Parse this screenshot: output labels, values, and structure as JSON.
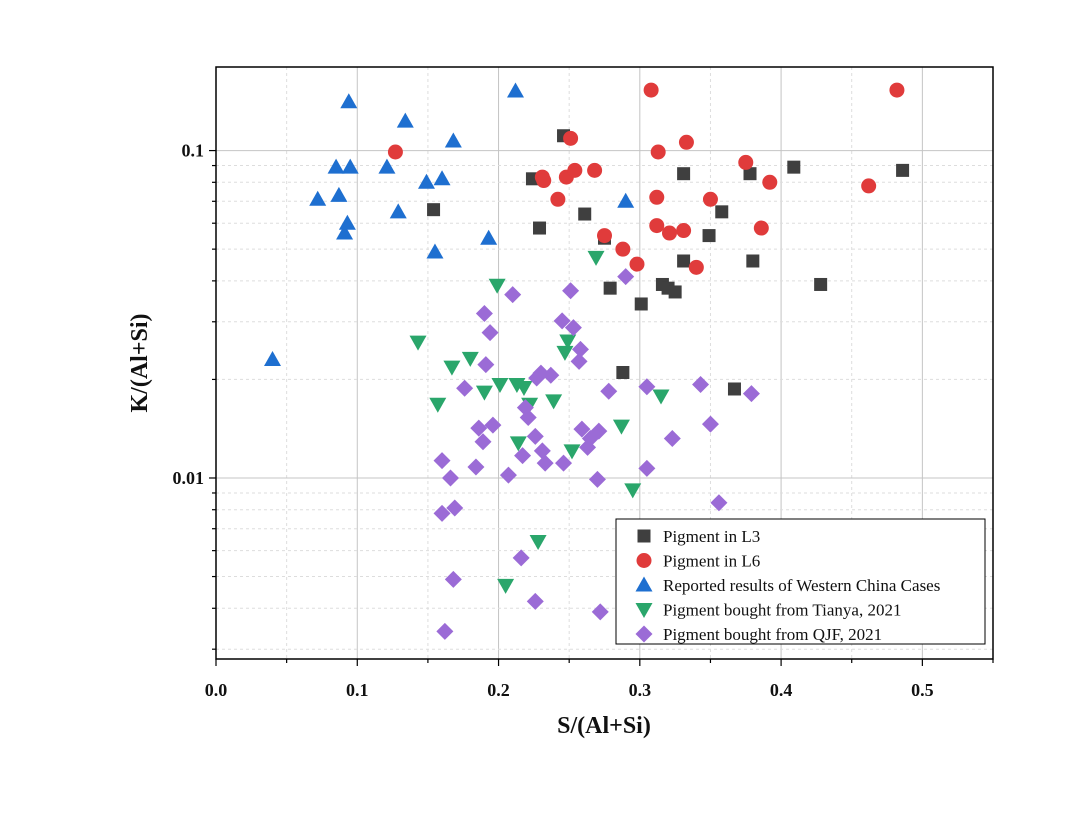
{
  "chart_data": {
    "type": "scatter",
    "title": "",
    "xlabel": "S/(Al+Si)",
    "ylabel": "K/(Al+Si)",
    "xlim": [
      0.0,
      0.55
    ],
    "ylim": [
      0.0028,
      0.18
    ],
    "yscale": "log",
    "x_ticks": [
      0.0,
      0.1,
      0.2,
      0.3,
      0.4,
      0.5
    ],
    "x_tick_labels": [
      "0.0",
      "0.1",
      "0.2",
      "0.3",
      "0.4",
      "0.5"
    ],
    "y_ticks": [
      0.01,
      0.1
    ],
    "y_tick_labels": [
      "0.01",
      "0.1"
    ],
    "grid": true,
    "legend_position": "bottom-right",
    "series": [
      {
        "name": "Pigment in L3",
        "marker": "square",
        "color": "#3f3f3f",
        "points": [
          [
            0.246,
            0.111
          ],
          [
            0.224,
            0.082
          ],
          [
            0.229,
            0.058
          ],
          [
            0.154,
            0.066
          ],
          [
            0.261,
            0.064
          ],
          [
            0.275,
            0.054
          ],
          [
            0.279,
            0.038
          ],
          [
            0.301,
            0.034
          ],
          [
            0.316,
            0.039
          ],
          [
            0.32,
            0.038
          ],
          [
            0.325,
            0.037
          ],
          [
            0.331,
            0.046
          ],
          [
            0.331,
            0.085
          ],
          [
            0.349,
            0.055
          ],
          [
            0.358,
            0.065
          ],
          [
            0.378,
            0.085
          ],
          [
            0.38,
            0.046
          ],
          [
            0.409,
            0.089
          ],
          [
            0.428,
            0.039
          ],
          [
            0.486,
            0.087
          ],
          [
            0.288,
            0.021
          ],
          [
            0.367,
            0.0187
          ]
        ]
      },
      {
        "name": "Pigment in L6",
        "marker": "circle",
        "color": "#e03b3b",
        "points": [
          [
            0.127,
            0.099
          ],
          [
            0.231,
            0.083
          ],
          [
            0.232,
            0.081
          ],
          [
            0.242,
            0.071
          ],
          [
            0.248,
            0.083
          ],
          [
            0.251,
            0.109
          ],
          [
            0.254,
            0.087
          ],
          [
            0.268,
            0.087
          ],
          [
            0.275,
            0.055
          ],
          [
            0.288,
            0.05
          ],
          [
            0.298,
            0.045
          ],
          [
            0.308,
            0.153
          ],
          [
            0.312,
            0.072
          ],
          [
            0.312,
            0.059
          ],
          [
            0.313,
            0.099
          ],
          [
            0.321,
            0.056
          ],
          [
            0.331,
            0.057
          ],
          [
            0.333,
            0.106
          ],
          [
            0.34,
            0.044
          ],
          [
            0.35,
            0.071
          ],
          [
            0.375,
            0.092
          ],
          [
            0.386,
            0.058
          ],
          [
            0.392,
            0.08
          ],
          [
            0.462,
            0.078
          ],
          [
            0.482,
            0.153
          ]
        ]
      },
      {
        "name": "Reported results of Western China Cases",
        "marker": "triangle-up",
        "color": "#1e6fd0",
        "points": [
          [
            0.04,
            0.023
          ],
          [
            0.072,
            0.071
          ],
          [
            0.085,
            0.089
          ],
          [
            0.087,
            0.073
          ],
          [
            0.091,
            0.056
          ],
          [
            0.093,
            0.06
          ],
          [
            0.094,
            0.141
          ],
          [
            0.095,
            0.089
          ],
          [
            0.121,
            0.089
          ],
          [
            0.129,
            0.065
          ],
          [
            0.134,
            0.123
          ],
          [
            0.149,
            0.08
          ],
          [
            0.155,
            0.049
          ],
          [
            0.16,
            0.082
          ],
          [
            0.168,
            0.107
          ],
          [
            0.193,
            0.054
          ],
          [
            0.212,
            0.152
          ],
          [
            0.29,
            0.07
          ]
        ]
      },
      {
        "name": "Pigment bought from Tianya, 2021",
        "marker": "triangle-down",
        "color": "#2aa66b",
        "points": [
          [
            0.143,
            0.026
          ],
          [
            0.157,
            0.0168
          ],
          [
            0.167,
            0.0218
          ],
          [
            0.18,
            0.0232
          ],
          [
            0.19,
            0.0183
          ],
          [
            0.199,
            0.0388
          ],
          [
            0.201,
            0.0193
          ],
          [
            0.213,
            0.0193
          ],
          [
            0.214,
            0.0128
          ],
          [
            0.218,
            0.0189
          ],
          [
            0.222,
            0.0168
          ],
          [
            0.239,
            0.0172
          ],
          [
            0.247,
            0.0242
          ],
          [
            0.249,
            0.0262
          ],
          [
            0.252,
            0.0121
          ],
          [
            0.269,
            0.0472
          ],
          [
            0.287,
            0.0144
          ],
          [
            0.295,
            0.0092
          ],
          [
            0.315,
            0.0178
          ],
          [
            0.205,
            0.0047
          ],
          [
            0.228,
            0.0064
          ]
        ]
      },
      {
        "name": "Pigment bought from QJF, 2021",
        "marker": "diamond",
        "color": "#9b6bd6",
        "points": [
          [
            0.16,
            0.0113
          ],
          [
            0.16,
            0.0078
          ],
          [
            0.162,
            0.0034
          ],
          [
            0.166,
            0.01
          ],
          [
            0.168,
            0.0049
          ],
          [
            0.169,
            0.0081
          ],
          [
            0.176,
            0.0188
          ],
          [
            0.184,
            0.0108
          ],
          [
            0.186,
            0.0142
          ],
          [
            0.189,
            0.0129
          ],
          [
            0.19,
            0.0318
          ],
          [
            0.191,
            0.0222
          ],
          [
            0.194,
            0.0278
          ],
          [
            0.196,
            0.0145
          ],
          [
            0.207,
            0.0102
          ],
          [
            0.21,
            0.0363
          ],
          [
            0.216,
            0.0057
          ],
          [
            0.217,
            0.0117
          ],
          [
            0.219,
            0.0164
          ],
          [
            0.221,
            0.0153
          ],
          [
            0.226,
            0.0134
          ],
          [
            0.226,
            0.0042
          ],
          [
            0.227,
            0.0202
          ],
          [
            0.23,
            0.0209
          ],
          [
            0.231,
            0.0121
          ],
          [
            0.233,
            0.0111
          ],
          [
            0.237,
            0.0206
          ],
          [
            0.245,
            0.0302
          ],
          [
            0.246,
            0.0111
          ],
          [
            0.251,
            0.0373
          ],
          [
            0.253,
            0.0288
          ],
          [
            0.257,
            0.0227
          ],
          [
            0.258,
            0.0247
          ],
          [
            0.259,
            0.0141
          ],
          [
            0.263,
            0.0124
          ],
          [
            0.265,
            0.0132
          ],
          [
            0.27,
            0.0099
          ],
          [
            0.271,
            0.0139
          ],
          [
            0.272,
            0.0039
          ],
          [
            0.278,
            0.0184
          ],
          [
            0.29,
            0.0412
          ],
          [
            0.305,
            0.0107
          ],
          [
            0.305,
            0.019
          ],
          [
            0.323,
            0.0132
          ],
          [
            0.343,
            0.0193
          ],
          [
            0.35,
            0.0146
          ],
          [
            0.356,
            0.0084
          ],
          [
            0.379,
            0.0181
          ]
        ]
      }
    ]
  }
}
